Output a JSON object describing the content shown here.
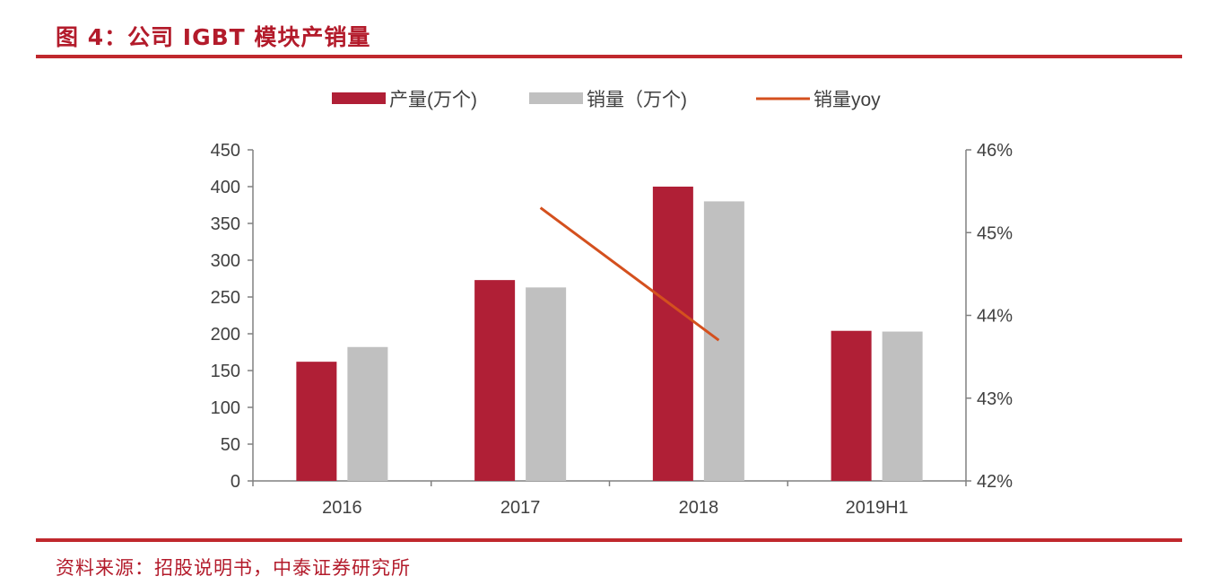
{
  "figure_title": "图 4：公司 IGBT 模块产销量",
  "source": "资料来源：招股说明书，中泰证券研究所",
  "colors": {
    "accent": "#c0282d",
    "production": "#b01f36",
    "sales": "#c0c0c0",
    "yoy": "#d4501e",
    "axis": "#808080"
  },
  "chart_data": {
    "type": "bar",
    "categories": [
      "2016",
      "2017",
      "2018",
      "2019H1"
    ],
    "series": [
      {
        "name": "产量(万个)",
        "kind": "bar",
        "axis": "left",
        "values": [
          162,
          273,
          400,
          204
        ]
      },
      {
        "name": "销量（万个)",
        "kind": "bar",
        "axis": "left",
        "values": [
          182,
          263,
          380,
          203
        ]
      },
      {
        "name": "销量yoy",
        "kind": "line",
        "axis": "right",
        "values": [
          null,
          45.3,
          43.7,
          null
        ]
      }
    ],
    "ylim": [
      0,
      450
    ],
    "yticks": [
      0,
      50,
      100,
      150,
      200,
      250,
      300,
      350,
      400,
      450
    ],
    "y2lim": [
      42,
      46
    ],
    "y2ticks": [
      "42%",
      "43%",
      "44%",
      "45%",
      "46%"
    ],
    "legend_position": "top-center",
    "grid": false
  }
}
